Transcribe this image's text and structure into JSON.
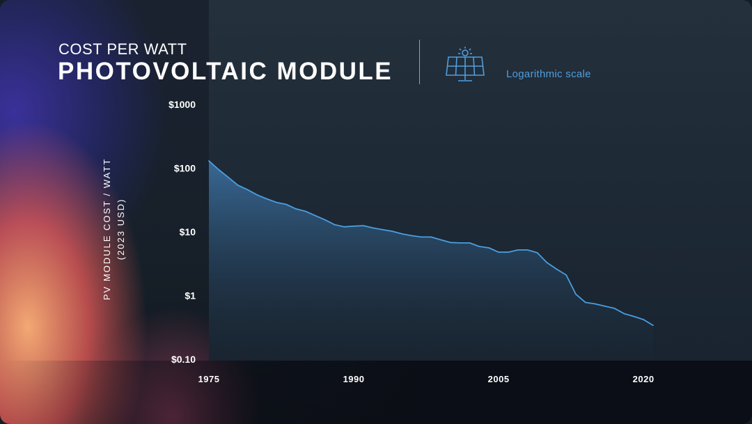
{
  "header": {
    "subtitle": "COST PER WATT",
    "title": "PHOTOVOLTAIC MODULE",
    "scale_note": "Logarithmic scale"
  },
  "colors": {
    "line": "#4a9ee0",
    "area_top": "#3a6f9e",
    "area_bottom": "#1b2733",
    "note": "#4f9fe0"
  },
  "icons": {
    "header_icon": "solar-panel-icon"
  },
  "chart_data": {
    "type": "area",
    "scale": "log",
    "ylabel_line1": "PV MODULE COST / WATT",
    "ylabel_line2": "(2023 USD)",
    "y_ticks": [
      {
        "value": 1000,
        "label": "$1000"
      },
      {
        "value": 100,
        "label": "$100"
      },
      {
        "value": 10,
        "label": "$10"
      },
      {
        "value": 1,
        "label": "$1"
      },
      {
        "value": 0.1,
        "label": "$0.10"
      }
    ],
    "x_ticks": [
      {
        "value": 1975,
        "label": "1975"
      },
      {
        "value": 1990,
        "label": "1990"
      },
      {
        "value": 2005,
        "label": "2005"
      },
      {
        "value": 2020,
        "label": "2020"
      }
    ],
    "xlim": [
      1975,
      2023
    ],
    "ylim": [
      0.1,
      1000
    ],
    "series": [
      {
        "x": [
          1975,
          1976,
          1977,
          1978,
          1979,
          1980,
          1981,
          1982,
          1983,
          1984,
          1985,
          1986,
          1987,
          1988,
          1989,
          1990,
          1991,
          1992,
          1993,
          1994,
          1995,
          1996,
          1997,
          1998,
          1999,
          2000,
          2001,
          2002,
          2003,
          2004,
          2005,
          2006,
          2007,
          2008,
          2009,
          2010,
          2011,
          2012,
          2013,
          2014,
          2015,
          2016,
          2017,
          2018,
          2019,
          2020,
          2021
        ],
        "y": [
          130,
          95,
          72,
          54,
          46,
          38,
          33,
          29,
          27,
          23,
          21,
          18,
          15.5,
          13,
          12,
          12.3,
          12.5,
          11.5,
          10.8,
          10.2,
          9.3,
          8.7,
          8.3,
          8.3,
          7.5,
          6.8,
          6.7,
          6.7,
          5.9,
          5.6,
          4.8,
          4.8,
          5.2,
          5.2,
          4.7,
          3.3,
          2.6,
          2.1,
          1.05,
          0.78,
          0.74,
          0.68,
          0.63,
          0.52,
          0.47,
          0.42,
          0.34
        ]
      }
    ]
  }
}
